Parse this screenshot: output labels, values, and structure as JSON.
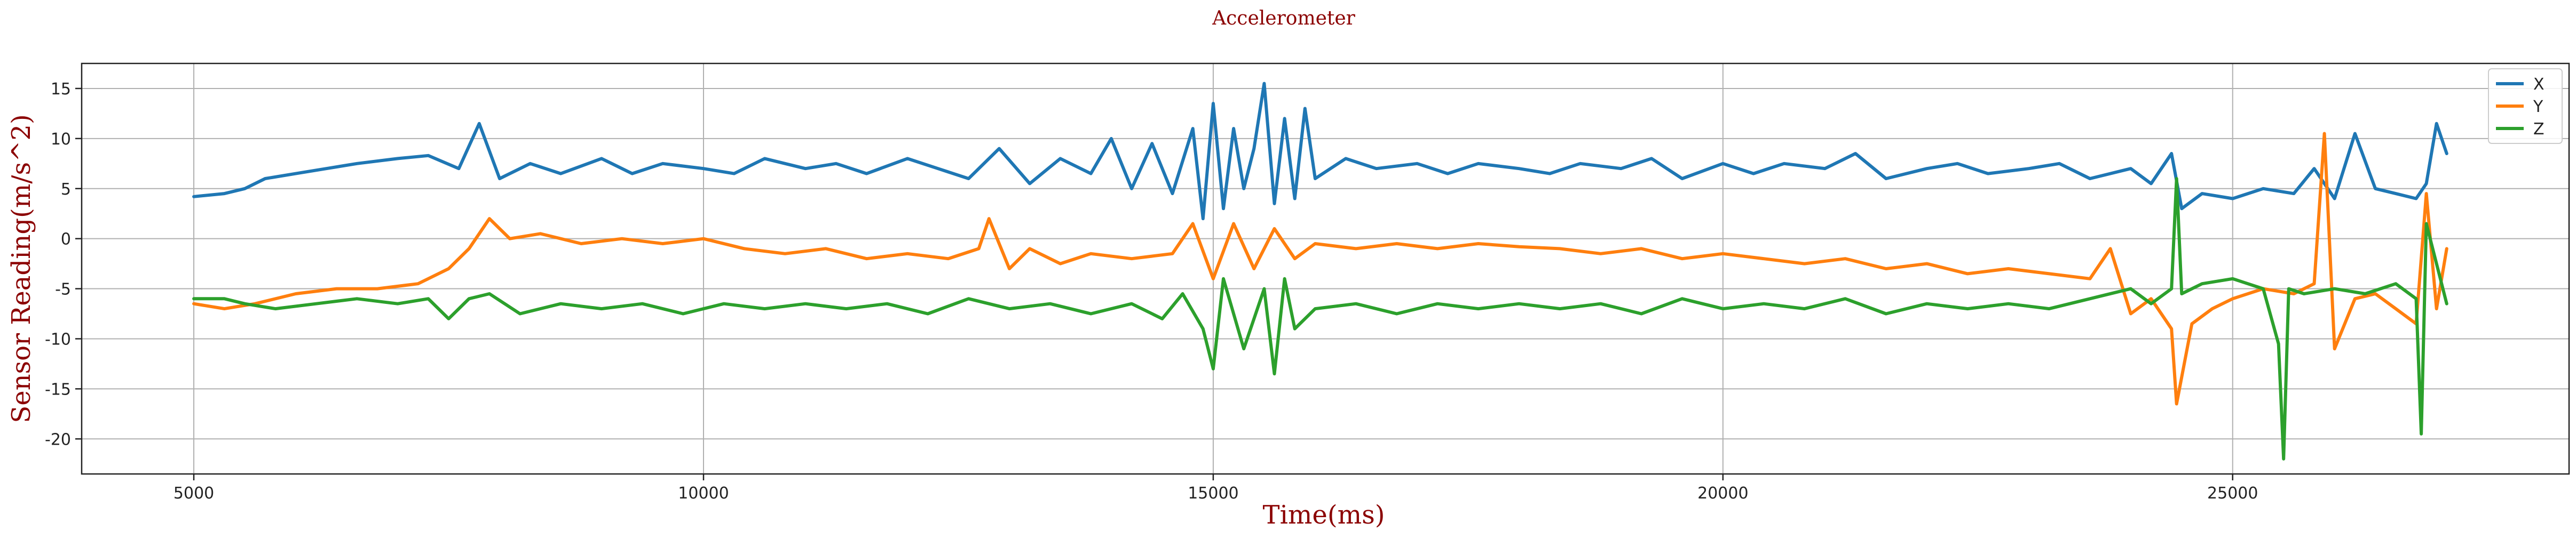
{
  "chart_data": {
    "type": "line",
    "title": "Accelerometer",
    "xlabel": "Time(ms)",
    "ylabel": "Sensor Reading(m/s^2)",
    "xlim": [
      3900,
      28300
    ],
    "ylim": [
      -23.5,
      17.5
    ],
    "xticks": [
      5000,
      10000,
      15000,
      20000,
      25000
    ],
    "yticks": [
      15,
      10,
      5,
      0,
      -5,
      -10,
      -15,
      -20
    ],
    "grid": true,
    "legend_position": "top-right",
    "colors": {
      "X": "#1f77b4",
      "Y": "#ff7f0e",
      "Z": "#2ca02c"
    },
    "series": [
      {
        "name": "X",
        "x": [
          5000,
          5300,
          5500,
          5700,
          6000,
          6300,
          6600,
          7000,
          7300,
          7600,
          7800,
          8000,
          8300,
          8600,
          9000,
          9300,
          9600,
          10000,
          10300,
          10600,
          11000,
          11300,
          11600,
          12000,
          12300,
          12600,
          12900,
          13200,
          13500,
          13800,
          14000,
          14200,
          14400,
          14600,
          14800,
          14900,
          15000,
          15100,
          15200,
          15300,
          15400,
          15500,
          15600,
          15700,
          15800,
          15900,
          16000,
          16300,
          16600,
          17000,
          17300,
          17600,
          18000,
          18300,
          18600,
          19000,
          19300,
          19600,
          20000,
          20300,
          20600,
          21000,
          21300,
          21600,
          22000,
          22300,
          22600,
          23000,
          23300,
          23600,
          24000,
          24200,
          24400,
          24500,
          24700,
          25000,
          25300,
          25600,
          25800,
          26000,
          26200,
          26400,
          26600,
          26800,
          26900,
          27000,
          27100
        ],
        "y": [
          4.2,
          4.5,
          5.0,
          6.0,
          6.5,
          7.0,
          7.5,
          8.0,
          8.3,
          7.0,
          11.5,
          6.0,
          7.5,
          6.5,
          8.0,
          6.5,
          7.5,
          7.0,
          6.5,
          8.0,
          7.0,
          7.5,
          6.5,
          8.0,
          7.0,
          6.0,
          9.0,
          5.5,
          8.0,
          6.5,
          10.0,
          5.0,
          9.5,
          4.5,
          11.0,
          2.0,
          13.5,
          3.0,
          11.0,
          5.0,
          9.0,
          15.5,
          3.5,
          12.0,
          4.0,
          13.0,
          6.0,
          8.0,
          7.0,
          7.5,
          6.5,
          7.5,
          7.0,
          6.5,
          7.5,
          7.0,
          8.0,
          6.0,
          7.5,
          6.5,
          7.5,
          7.0,
          8.5,
          6.0,
          7.0,
          7.5,
          6.5,
          7.0,
          7.5,
          6.0,
          7.0,
          5.5,
          8.5,
          3.0,
          4.5,
          4.0,
          5.0,
          4.5,
          7.0,
          4.0,
          10.5,
          5.0,
          4.5,
          4.0,
          5.5,
          11.5,
          8.5
        ]
      },
      {
        "name": "Y",
        "x": [
          5000,
          5300,
          5600,
          6000,
          6400,
          6800,
          7200,
          7500,
          7700,
          7900,
          8100,
          8400,
          8800,
          9200,
          9600,
          10000,
          10400,
          10800,
          11200,
          11600,
          12000,
          12400,
          12700,
          12800,
          13000,
          13200,
          13500,
          13800,
          14200,
          14600,
          14800,
          15000,
          15200,
          15400,
          15600,
          15800,
          16000,
          16400,
          16800,
          17200,
          17600,
          18000,
          18400,
          18800,
          19200,
          19600,
          20000,
          20400,
          20800,
          21200,
          21600,
          22000,
          22400,
          22800,
          23200,
          23600,
          23800,
          24000,
          24200,
          24400,
          24450,
          24600,
          24800,
          25000,
          25300,
          25600,
          25800,
          25900,
          26000,
          26200,
          26400,
          26600,
          26800,
          26900,
          27000,
          27100
        ],
        "y": [
          -6.5,
          -7.0,
          -6.5,
          -5.5,
          -5.0,
          -5.0,
          -4.5,
          -3.0,
          -1.0,
          2.0,
          0.0,
          0.5,
          -0.5,
          0.0,
          -0.5,
          0.0,
          -1.0,
          -1.5,
          -1.0,
          -2.0,
          -1.5,
          -2.0,
          -1.0,
          2.0,
          -3.0,
          -1.0,
          -2.5,
          -1.5,
          -2.0,
          -1.5,
          1.5,
          -4.0,
          1.5,
          -3.0,
          1.0,
          -2.0,
          -0.5,
          -1.0,
          -0.5,
          -1.0,
          -0.5,
          -0.8,
          -1.0,
          -1.5,
          -1.0,
          -2.0,
          -1.5,
          -2.0,
          -2.5,
          -2.0,
          -3.0,
          -2.5,
          -3.5,
          -3.0,
          -3.5,
          -4.0,
          -1.0,
          -7.5,
          -6.0,
          -9.0,
          -16.5,
          -8.5,
          -7.0,
          -6.0,
          -5.0,
          -5.5,
          -4.5,
          10.5,
          -11.0,
          -6.0,
          -5.5,
          -7.0,
          -8.5,
          4.5,
          -7.0,
          -1.0
        ]
      },
      {
        "name": "Z",
        "x": [
          5000,
          5300,
          5500,
          5800,
          6200,
          6600,
          7000,
          7300,
          7500,
          7700,
          7900,
          8200,
          8600,
          9000,
          9400,
          9800,
          10200,
          10600,
          11000,
          11400,
          11800,
          12200,
          12600,
          13000,
          13400,
          13800,
          14200,
          14500,
          14700,
          14900,
          15000,
          15100,
          15300,
          15500,
          15600,
          15700,
          15800,
          16000,
          16400,
          16800,
          17200,
          17600,
          18000,
          18400,
          18800,
          19200,
          19600,
          20000,
          20400,
          20800,
          21200,
          21600,
          22000,
          22400,
          22800,
          23200,
          23600,
          24000,
          24200,
          24400,
          24450,
          24500,
          24700,
          25000,
          25300,
          25450,
          25500,
          25550,
          25700,
          26000,
          26300,
          26600,
          26800,
          26850,
          26900,
          27000,
          27100
        ],
        "y": [
          -6.0,
          -6.0,
          -6.5,
          -7.0,
          -6.5,
          -6.0,
          -6.5,
          -6.0,
          -8.0,
          -6.0,
          -5.5,
          -7.5,
          -6.5,
          -7.0,
          -6.5,
          -7.5,
          -6.5,
          -7.0,
          -6.5,
          -7.0,
          -6.5,
          -7.5,
          -6.0,
          -7.0,
          -6.5,
          -7.5,
          -6.5,
          -8.0,
          -5.5,
          -9.0,
          -13.0,
          -4.0,
          -11.0,
          -5.0,
          -13.5,
          -4.0,
          -9.0,
          -7.0,
          -6.5,
          -7.5,
          -6.5,
          -7.0,
          -6.5,
          -7.0,
          -6.5,
          -7.5,
          -6.0,
          -7.0,
          -6.5,
          -7.0,
          -6.0,
          -7.5,
          -6.5,
          -7.0,
          -6.5,
          -7.0,
          -6.0,
          -5.0,
          -6.5,
          -5.0,
          6.0,
          -5.5,
          -4.5,
          -4.0,
          -5.0,
          -10.5,
          -22.0,
          -5.0,
          -5.5,
          -5.0,
          -5.5,
          -4.5,
          -6.0,
          -19.5,
          1.5,
          -2.5,
          -6.5
        ]
      }
    ]
  }
}
